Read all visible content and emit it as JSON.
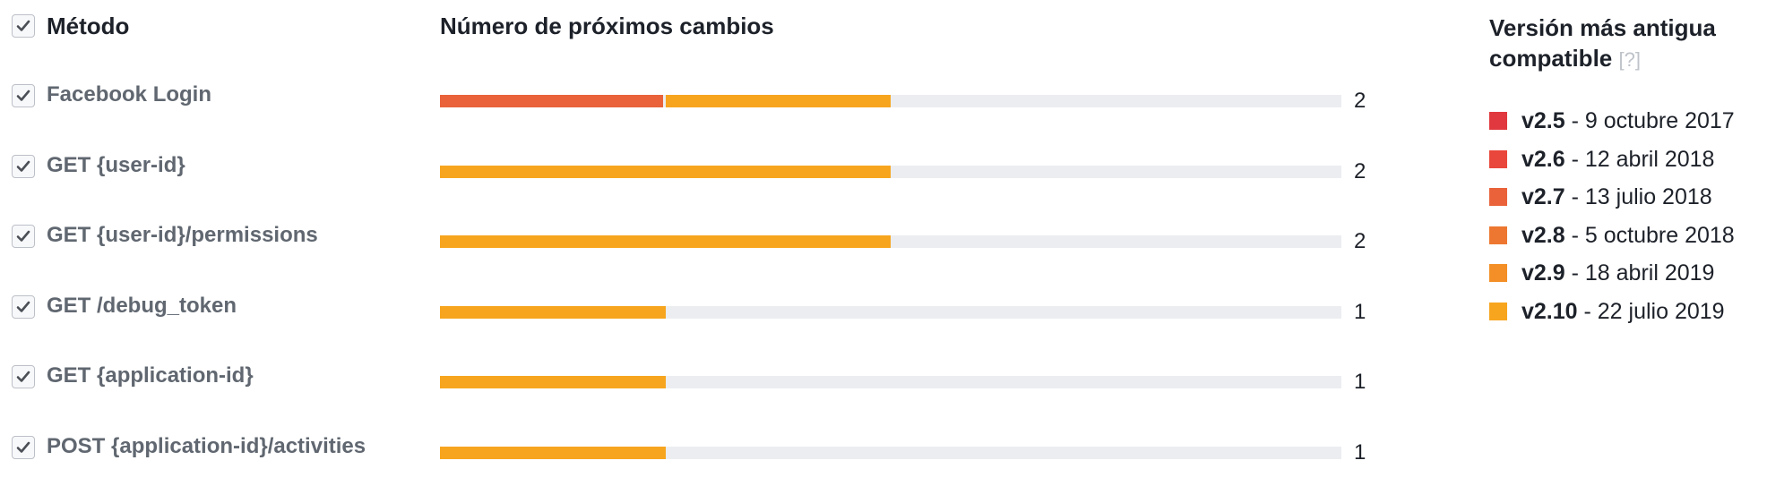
{
  "header": {
    "method_label": "Método",
    "count_label": "Número de próximos cambios",
    "legend_title_line1": "Versión más antigua",
    "legend_title_line2": "compatible",
    "legend_help": "[?]"
  },
  "colors": {
    "v2.5": "#e0383e",
    "v2.6": "#e9473b",
    "v2.7": "#e9623a",
    "v2.8": "#ed7730",
    "v2.9": "#f38f26",
    "v2.10": "#f7a51e",
    "track": "#ebedf0"
  },
  "chart_data": {
    "type": "bar",
    "orientation": "horizontal",
    "stacked": true,
    "xlim": [
      0,
      4
    ],
    "categories": [
      "Facebook Login",
      "GET {user-id}",
      "GET {user-id}/permissions",
      "GET /debug_token",
      "GET {application-id}",
      "POST {application-id}/activities"
    ],
    "rows": [
      {
        "label": "Facebook Login",
        "checked": true,
        "total": "2",
        "segments": [
          {
            "version": "v2.7",
            "value": 1
          },
          {
            "version": "v2.10",
            "value": 1
          }
        ]
      },
      {
        "label": "GET {user-id}",
        "checked": true,
        "total": "2",
        "segments": [
          {
            "version": "v2.10",
            "value": 2
          }
        ]
      },
      {
        "label": "GET {user-id}/permissions",
        "checked": true,
        "total": "2",
        "segments": [
          {
            "version": "v2.10",
            "value": 2
          }
        ]
      },
      {
        "label": "GET /debug_token",
        "checked": true,
        "total": "1",
        "segments": [
          {
            "version": "v2.10",
            "value": 1
          }
        ]
      },
      {
        "label": "GET {application-id}",
        "checked": true,
        "total": "1",
        "segments": [
          {
            "version": "v2.10",
            "value": 1
          }
        ]
      },
      {
        "label": "POST {application-id}/activities",
        "checked": true,
        "total": "1",
        "segments": [
          {
            "version": "v2.10",
            "value": 1
          }
        ]
      }
    ],
    "legend": [
      {
        "version": "v2.5",
        "date": "9 octubre 2017"
      },
      {
        "version": "v2.6",
        "date": "12 abril 2018"
      },
      {
        "version": "v2.7",
        "date": "13 julio 2018"
      },
      {
        "version": "v2.8",
        "date": "5 octubre 2018"
      },
      {
        "version": "v2.9",
        "date": "18 abril 2019"
      },
      {
        "version": "v2.10",
        "date": "22 julio 2019"
      }
    ],
    "legend_placement": "right"
  }
}
